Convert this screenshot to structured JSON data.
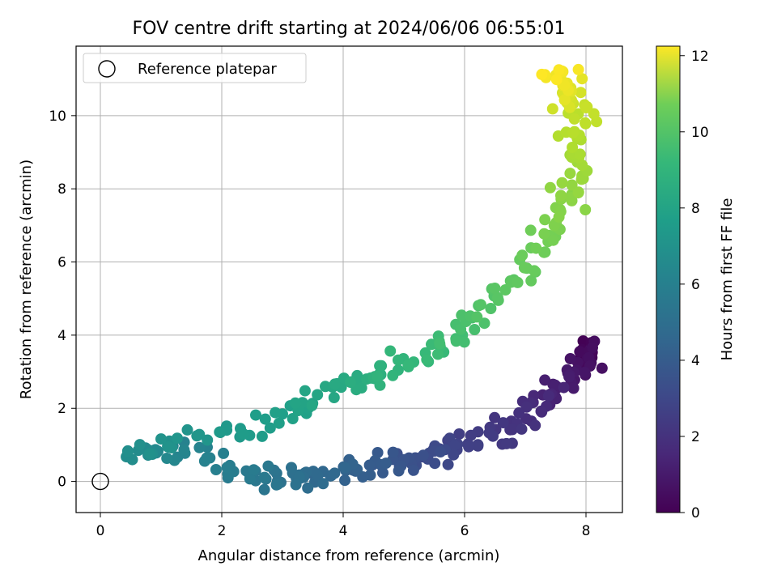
{
  "chart_data": {
    "type": "scatter",
    "title": "FOV centre drift starting at 2024/06/06 06:55:01",
    "xlabel": "Angular distance from reference (arcmin)",
    "ylabel": "Rotation from reference (arcmin)",
    "xlim": [
      -0.4,
      8.6
    ],
    "ylim": [
      -0.85,
      11.9
    ],
    "xticks": [
      0,
      2,
      4,
      6,
      8
    ],
    "yticks": [
      0,
      2,
      4,
      6,
      8,
      10
    ],
    "grid": true,
    "legend": {
      "placement": "top-left",
      "entries": [
        "Reference platepar"
      ]
    },
    "reference_point": {
      "x": 0,
      "y": 0
    },
    "colorbar": {
      "label": "Hours from first FF file",
      "colormap": "viridis",
      "range": [
        0,
        12.25
      ],
      "ticks": [
        0,
        2,
        4,
        6,
        8,
        10,
        12
      ]
    },
    "path_keyframes": [
      [
        0.0,
        8.05,
        3.6
      ],
      [
        0.5,
        8.0,
        3.3
      ],
      [
        1.0,
        7.6,
        2.6
      ],
      [
        1.5,
        7.2,
        2.0
      ],
      [
        2.0,
        6.6,
        1.4
      ],
      [
        2.5,
        5.8,
        0.85
      ],
      [
        3.0,
        5.2,
        0.6
      ],
      [
        3.5,
        4.6,
        0.45
      ],
      [
        4.0,
        3.9,
        0.25
      ],
      [
        4.5,
        3.2,
        0.1
      ],
      [
        5.0,
        2.5,
        0.1
      ],
      [
        5.5,
        1.5,
        0.95
      ],
      [
        6.0,
        0.5,
        0.75
      ],
      [
        6.3,
        1.3,
        1.1
      ],
      [
        6.7,
        2.4,
        1.5
      ],
      [
        7.0,
        3.2,
        2.0
      ],
      [
        7.4,
        4.0,
        2.6
      ],
      [
        8.0,
        4.9,
        3.1
      ],
      [
        8.5,
        5.8,
        3.9
      ],
      [
        9.0,
        6.5,
        5.0
      ],
      [
        9.5,
        7.2,
        6.3
      ],
      [
        10.0,
        7.6,
        7.4
      ],
      [
        10.5,
        7.9,
        8.6
      ],
      [
        11.0,
        7.85,
        9.8
      ],
      [
        11.5,
        7.75,
        10.6
      ],
      [
        12.25,
        7.45,
        11.2
      ]
    ],
    "n_points": 420,
    "jitter_sigma": [
      0.13,
      0.16
    ]
  }
}
